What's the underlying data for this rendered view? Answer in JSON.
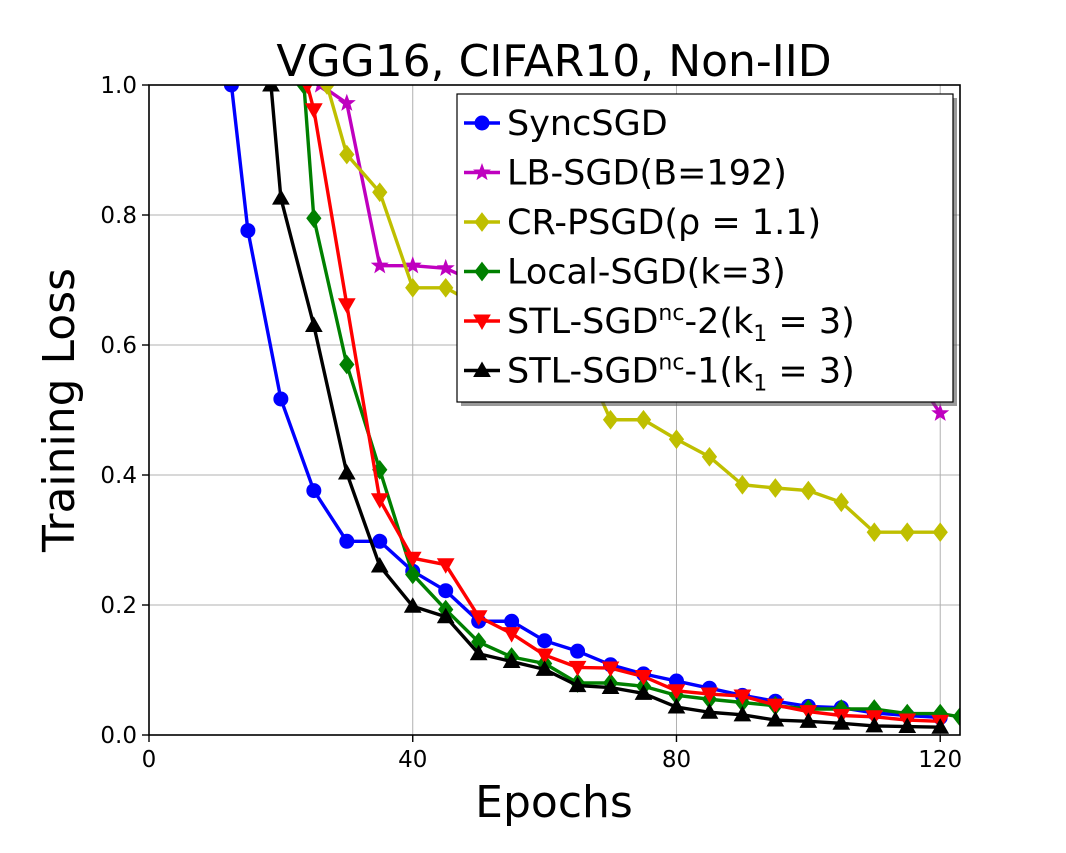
{
  "chart_data": {
    "type": "line",
    "title": "VGG16, CIFAR10, Non-IID",
    "xlabel": "Epochs",
    "ylabel": "Training Loss",
    "xlim": [
      0,
      123
    ],
    "ylim": [
      0,
      1.0
    ],
    "xticks": [
      "0",
      "40",
      "80",
      "120"
    ],
    "yticks": [
      "0.0",
      "0.2",
      "0.4",
      "0.6",
      "0.8",
      "1.0"
    ],
    "grid": true,
    "legend_position": "top-right",
    "series": [
      {
        "name": "SyncSGD",
        "color": "#0000ff",
        "marker": "circle",
        "x": [
          12.5,
          15,
          20,
          25,
          30,
          35,
          40,
          45,
          50,
          55,
          60,
          65,
          70,
          75,
          80,
          85,
          90,
          95,
          100,
          105,
          110,
          115,
          120
        ],
        "y": [
          1.0,
          0.776,
          0.517,
          0.376,
          0.298,
          0.298,
          0.252,
          0.222,
          0.175,
          0.175,
          0.145,
          0.129,
          0.108,
          0.094,
          0.083,
          0.072,
          0.061,
          0.052,
          0.044,
          0.042,
          0.034,
          0.03,
          0.027
        ]
      },
      {
        "name": "LB-SGD(B=192)",
        "color": "#bf00bf",
        "marker": "star",
        "x": [
          26,
          30,
          35,
          40,
          45,
          50,
          117,
          120
        ],
        "y": [
          1.0,
          0.972,
          0.722,
          0.722,
          0.718,
          0.695,
          0.54,
          0.495
        ]
      },
      {
        "name": "CR-PSGD(ρ = 1.1)",
        "color": "#bfbf00",
        "marker": "diamond",
        "x": [
          27,
          30,
          35,
          40,
          45,
          50,
          68,
          70,
          75,
          80,
          85,
          90,
          95,
          100,
          105,
          110,
          115,
          120
        ],
        "y": [
          1.0,
          0.893,
          0.835,
          0.688,
          0.688,
          0.66,
          0.53,
          0.485,
          0.485,
          0.455,
          0.428,
          0.385,
          0.38,
          0.376,
          0.358,
          0.312,
          0.312,
          0.312
        ]
      },
      {
        "name": "Local-SGD(k=3)",
        "color": "#008000",
        "marker": "diamond",
        "x": [
          23.5,
          25,
          30,
          35,
          40,
          45,
          50,
          55,
          60,
          65,
          70,
          75,
          80,
          85,
          90,
          95,
          100,
          105,
          110,
          115,
          120,
          123
        ],
        "y": [
          1.0,
          0.795,
          0.57,
          0.408,
          0.247,
          0.193,
          0.143,
          0.12,
          0.11,
          0.08,
          0.08,
          0.075,
          0.061,
          0.055,
          0.05,
          0.045,
          0.04,
          0.04,
          0.04,
          0.033,
          0.033,
          0.028
        ]
      },
      {
        "name": "STL-SGD^nc-2(k1 = 3)",
        "color": "#ff0000",
        "marker": "triangle-down",
        "x": [
          24,
          25,
          30,
          35,
          40,
          45,
          50,
          55,
          60,
          65,
          70,
          75,
          80,
          85,
          90,
          95,
          100,
          105,
          110,
          115,
          120
        ],
        "y": [
          1.0,
          0.962,
          0.662,
          0.362,
          0.272,
          0.262,
          0.182,
          0.156,
          0.123,
          0.104,
          0.103,
          0.09,
          0.068,
          0.063,
          0.06,
          0.046,
          0.036,
          0.03,
          0.028,
          0.023,
          0.021
        ]
      },
      {
        "name": "STL-SGD^nc-1(k1 = 3)",
        "color": "#000000",
        "marker": "triangle-up",
        "x": [
          18.5,
          20,
          25,
          30,
          35,
          40,
          45,
          50,
          55,
          60,
          65,
          70,
          75,
          80,
          85,
          90,
          95,
          100,
          105,
          110,
          115,
          120
        ],
        "y": [
          1.0,
          0.826,
          0.63,
          0.403,
          0.26,
          0.198,
          0.182,
          0.125,
          0.113,
          0.101,
          0.076,
          0.073,
          0.064,
          0.043,
          0.035,
          0.031,
          0.023,
          0.021,
          0.018,
          0.014,
          0.013,
          0.012
        ]
      }
    ]
  }
}
